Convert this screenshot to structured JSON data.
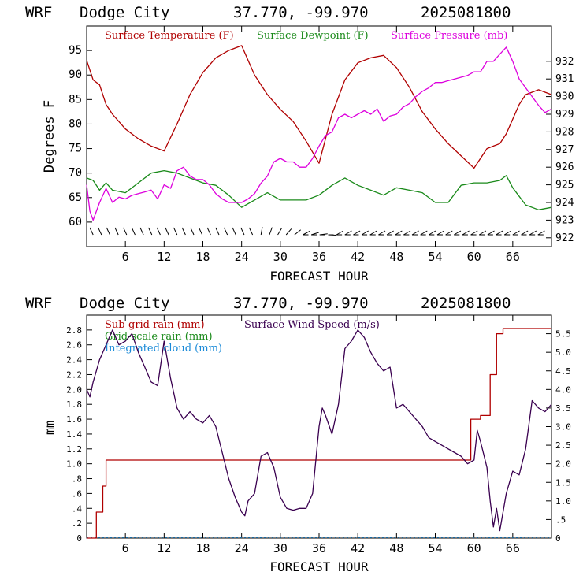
{
  "chart_data": [
    {
      "type": "line",
      "header": {
        "model": "WRF",
        "station": "Dodge City",
        "coords": "37.770, -99.970",
        "init": "2025081800"
      },
      "xlabel": "FORECAST HOUR",
      "ylabel": "Degrees F",
      "xlim": [
        0,
        72
      ],
      "ylim": [
        55,
        100
      ],
      "y2lim": [
        921.5,
        934
      ],
      "xticks": [
        6,
        12,
        18,
        24,
        30,
        36,
        42,
        48,
        54,
        60,
        66
      ],
      "yticks": [
        60,
        65,
        70,
        75,
        80,
        85,
        90,
        95
      ],
      "y2ticks": [
        922,
        923,
        924,
        925,
        926,
        927,
        928,
        929,
        930,
        931,
        932
      ],
      "grid": false,
      "legend_placement": "top",
      "series": [
        {
          "name": "Surface Temperature (F)",
          "color": "#b00000",
          "axis": "left",
          "x": [
            0,
            1,
            2,
            3,
            4,
            6,
            8,
            10,
            12,
            14,
            16,
            18,
            20,
            22,
            24,
            26,
            28,
            30,
            32,
            34,
            36,
            38,
            40,
            42,
            44,
            46,
            48,
            50,
            52,
            54,
            56,
            58,
            60,
            61,
            62,
            63,
            64,
            65,
            66,
            67,
            68,
            70,
            72
          ],
          "y": [
            93,
            89,
            88,
            84,
            82,
            79,
            77,
            75.5,
            74.5,
            80,
            86,
            90.5,
            93.5,
            95,
            96,
            90,
            86,
            83,
            80.5,
            76.5,
            72,
            82,
            89,
            92.5,
            93.5,
            94,
            91.5,
            87.5,
            82.5,
            79,
            76,
            73.5,
            71,
            73,
            75,
            75.5,
            76,
            78,
            81,
            84,
            86,
            87,
            86
          ]
        },
        {
          "name": "Surface Dewpoint (F)",
          "color": "#1a8a1a",
          "axis": "left",
          "x": [
            0,
            1,
            2,
            3,
            4,
            6,
            8,
            10,
            12,
            14,
            16,
            18,
            20,
            22,
            24,
            26,
            28,
            30,
            32,
            34,
            36,
            38,
            40,
            42,
            44,
            46,
            48,
            50,
            52,
            54,
            56,
            58,
            60,
            62,
            64,
            65,
            66,
            68,
            70,
            72
          ],
          "y": [
            69,
            68.5,
            66.5,
            68,
            66.5,
            66,
            68,
            70,
            70.5,
            70,
            69,
            68,
            67.5,
            65.5,
            63,
            64.5,
            66,
            64.5,
            64.5,
            64.5,
            65.5,
            67.5,
            69,
            67.5,
            66.5,
            65.5,
            67,
            66.5,
            66,
            64,
            64,
            67.5,
            68,
            68,
            68.5,
            69.5,
            67,
            63.5,
            62.5,
            63
          ]
        },
        {
          "name": "Surface Pressure (mb)",
          "color": "#dd00dd",
          "axis": "right",
          "x": [
            0,
            0.5,
            1,
            2,
            3,
            4,
            5,
            6,
            7,
            8,
            9,
            10,
            11,
            12,
            13,
            14,
            15,
            16,
            17,
            18,
            19,
            20,
            21,
            22,
            23,
            24,
            25,
            26,
            27,
            28,
            29,
            30,
            31,
            32,
            33,
            34,
            35,
            36,
            37,
            38,
            39,
            40,
            41,
            42,
            43,
            44,
            45,
            46,
            47,
            48,
            49,
            50,
            51,
            52,
            53,
            54,
            55,
            56,
            57,
            58,
            59,
            60,
            61,
            62,
            63,
            64,
            65,
            66,
            67,
            68,
            69,
            70,
            71,
            72
          ],
          "y": [
            925,
            923.5,
            923,
            924,
            924.8,
            924,
            924.3,
            924.2,
            924.4,
            924.5,
            924.6,
            924.7,
            924.2,
            925,
            924.8,
            925.8,
            926,
            925.5,
            925.3,
            925.3,
            925,
            924.5,
            924.2,
            924,
            924,
            924,
            924.2,
            924.5,
            925.1,
            925.5,
            926.3,
            926.5,
            926.3,
            926.3,
            926,
            926,
            926.5,
            927.2,
            927.8,
            928,
            928.8,
            929,
            928.8,
            929,
            929.2,
            929,
            929.3,
            928.6,
            928.9,
            929,
            929.4,
            929.6,
            930,
            930.3,
            930.5,
            930.8,
            930.8,
            930.9,
            931,
            931.1,
            931.2,
            931.4,
            931.4,
            932,
            932,
            932.4,
            932.8,
            932,
            931,
            930.5,
            930,
            929.5,
            929.1,
            929.3
          ]
        }
      ],
      "wind_barbs": {
        "x_start": 1,
        "x_end": 71,
        "step": 1.3
      }
    },
    {
      "type": "line",
      "header": {
        "model": "WRF",
        "station": "Dodge City",
        "coords": "37.770, -99.970",
        "init": "2025081800"
      },
      "xlabel": "FORECAST HOUR",
      "ylabel": "mm",
      "xlim": [
        0,
        72
      ],
      "ylim": [
        0,
        3.0
      ],
      "y2lim": [
        0,
        6.0
      ],
      "xticks": [
        6,
        12,
        18,
        24,
        30,
        36,
        42,
        48,
        54,
        60,
        66
      ],
      "yticks": [
        0,
        0.2,
        0.4,
        0.6,
        0.8,
        1.0,
        1.2,
        1.4,
        1.6,
        1.8,
        2.0,
        2.2,
        2.4,
        2.6,
        2.8
      ],
      "ytick_labels": [
        "0",
        ".2",
        ".4",
        ".6",
        ".8",
        "1.0",
        "1.2",
        "1.4",
        "1.6",
        "1.8",
        "2.0",
        "2.2",
        "2.4",
        "2.6",
        "2.8"
      ],
      "y2ticks": [
        0,
        0.5,
        1.0,
        1.5,
        2.0,
        2.5,
        3.0,
        3.5,
        4.0,
        4.5,
        5.0,
        5.5
      ],
      "y2tick_labels": [
        "0",
        ".5",
        "1.0",
        "1.5",
        "2.0",
        "2.5",
        "3.0",
        "3.5",
        "4.0",
        "4.5",
        "5.0",
        "5.5"
      ],
      "grid": false,
      "legend_placement": "top-left",
      "series": [
        {
          "name": "Sub-grid rain (mm)",
          "color": "#b00000",
          "axis": "left",
          "step": true,
          "x": [
            0,
            1.5,
            1.5,
            2.5,
            2.5,
            3.0,
            3.0,
            59.5,
            59.5,
            61,
            61,
            62.5,
            62.5,
            63.5,
            63.5,
            64.5,
            64.5,
            72
          ],
          "y": [
            0,
            0,
            0.35,
            0.35,
            0.7,
            0.7,
            1.05,
            1.05,
            1.6,
            1.6,
            1.65,
            1.65,
            2.2,
            2.2,
            2.75,
            2.75,
            2.82,
            2.82
          ]
        },
        {
          "name": "Surface Wind Speed (m/s)",
          "color": "#3a0050",
          "axis": "right",
          "x": [
            0,
            0.5,
            1,
            2,
            3,
            4,
            5,
            6,
            7,
            8,
            9,
            10,
            11,
            12,
            13,
            14,
            15,
            16,
            17,
            18,
            19,
            20,
            21,
            22,
            23,
            24,
            24.5,
            25,
            26,
            27,
            28,
            29,
            30,
            31,
            32,
            33,
            34,
            35,
            36,
            36.5,
            37,
            38,
            39,
            40,
            41,
            42,
            43,
            44,
            45,
            46,
            47,
            48,
            49,
            50,
            51,
            52,
            53,
            54,
            55,
            56,
            57,
            58,
            59,
            60,
            60.5,
            61,
            62,
            62.5,
            63,
            63.5,
            64,
            65,
            66,
            67,
            68,
            69,
            70,
            71,
            72
          ],
          "y": [
            4.0,
            3.8,
            4.2,
            4.8,
            5.2,
            5.6,
            5.2,
            5.3,
            5.5,
            5.0,
            4.6,
            4.2,
            4.1,
            5.3,
            4.3,
            3.5,
            3.2,
            3.4,
            3.2,
            3.1,
            3.3,
            3.0,
            2.3,
            1.6,
            1.1,
            0.7,
            0.6,
            1.0,
            1.2,
            2.2,
            2.3,
            1.9,
            1.1,
            0.8,
            0.75,
            0.8,
            0.8,
            1.2,
            3.0,
            3.5,
            3.3,
            2.8,
            3.6,
            5.1,
            5.3,
            5.6,
            5.4,
            5.0,
            4.7,
            4.5,
            4.6,
            3.5,
            3.6,
            3.4,
            3.2,
            3.0,
            2.7,
            2.6,
            2.5,
            2.4,
            2.3,
            2.2,
            2.0,
            2.1,
            2.9,
            2.6,
            1.9,
            1.0,
            0.3,
            0.8,
            0.2,
            1.2,
            1.8,
            1.7,
            2.4,
            3.7,
            3.5,
            3.4,
            3.6
          ]
        },
        {
          "name": "Grid-scale rain (mm)",
          "color": "#1a8a1a",
          "axis": "left",
          "x": [],
          "y": []
        },
        {
          "name": "Integrated cloud (mm)",
          "color": "#1a8ad8",
          "axis": "left",
          "x": [],
          "y": []
        }
      ]
    }
  ]
}
